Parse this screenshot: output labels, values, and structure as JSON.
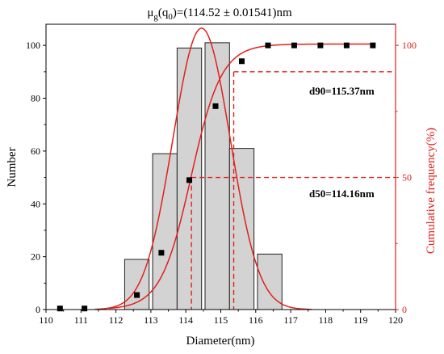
{
  "colors": {
    "bar_fill": "#d3d3d3",
    "bar_stroke": "#222222",
    "curve": "#e0211c",
    "marker": "#000000",
    "axis_right": "#e0211c",
    "guide": "#e0211c"
  },
  "chart_data": {
    "type": "bar",
    "title_mu": "μ",
    "title_g": "g",
    "title_q": "(q",
    "title_0": "0",
    "title_rest": ")=(114.52 ± 0.01541)nm",
    "xlabel": "Diameter(nm)",
    "ylabel_left": "Number",
    "ylabel_right": "Cumulative frequency(%)",
    "xlim": [
      110,
      120
    ],
    "ylim_left": [
      0,
      108
    ],
    "ylim_right": [
      0,
      108
    ],
    "x_ticks": [
      "110",
      "111",
      "112",
      "113",
      "114",
      "115",
      "116",
      "117",
      "118",
      "119",
      "120"
    ],
    "y_left_ticks": [
      "0",
      "20",
      "40",
      "60",
      "80",
      "100"
    ],
    "y_right_ticks": [
      "0",
      "50",
      "100"
    ],
    "bars": {
      "centers": [
        112.6,
        113.4,
        114.1,
        114.9,
        115.6,
        116.4
      ],
      "width": 0.7,
      "values": [
        19,
        59,
        99,
        101,
        61,
        21
      ]
    },
    "cumulative_points": {
      "x": [
        110.4,
        111.1,
        112.6,
        113.3,
        114.1,
        114.85,
        115.6,
        116.35,
        117.1,
        117.85,
        118.6,
        119.35
      ],
      "y": [
        0.4,
        0.4,
        5.5,
        21.5,
        49,
        77,
        94,
        100,
        100,
        100,
        100,
        100
      ]
    },
    "normal_fit": {
      "mean": 114.45,
      "sigma": 0.82,
      "amplitude": 106.5
    },
    "cumulative_fit": {
      "x0": 114.15,
      "k": 2.3,
      "ymax": 100.5
    },
    "d50": {
      "label": "d50=114.16nm",
      "x": 114.16,
      "y": 50
    },
    "d90": {
      "label": "d90=115.37nm",
      "x": 115.37,
      "y": 90
    }
  }
}
